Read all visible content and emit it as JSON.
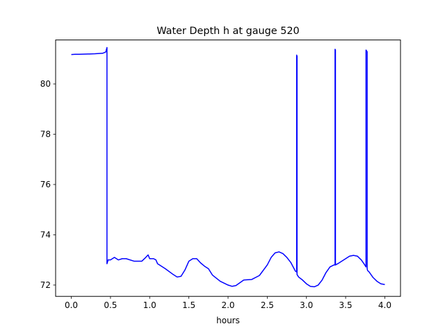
{
  "chart_data": {
    "type": "line",
    "title": "Water Depth h at gauge 520",
    "xlabel": "hours",
    "ylabel": "",
    "xlim": [
      -0.2,
      4.2
    ],
    "ylim": [
      71.55,
      81.75
    ],
    "xticks": [
      0.0,
      0.5,
      1.0,
      1.5,
      2.0,
      2.5,
      3.0,
      3.5,
      4.0
    ],
    "xtick_labels": [
      "0.0",
      "0.5",
      "1.0",
      "1.5",
      "2.0",
      "2.5",
      "3.0",
      "3.5",
      "4.0"
    ],
    "yticks": [
      72,
      74,
      76,
      78,
      80
    ],
    "ytick_labels": [
      "72",
      "74",
      "76",
      "78",
      "80"
    ],
    "grid": false,
    "legend": "none",
    "series": [
      {
        "color": "#0000ff",
        "x": [
          0.0,
          0.05,
          0.1,
          0.2,
          0.3,
          0.4,
          0.44,
          0.455,
          0.455,
          0.47,
          0.5,
          0.55,
          0.6,
          0.65,
          0.7,
          0.8,
          0.9,
          0.95,
          0.98,
          1.0,
          1.05,
          1.08,
          1.1,
          1.2,
          1.3,
          1.35,
          1.4,
          1.45,
          1.5,
          1.55,
          1.6,
          1.65,
          1.7,
          1.75,
          1.8,
          1.9,
          2.0,
          2.05,
          2.1,
          2.2,
          2.3,
          2.4,
          2.5,
          2.55,
          2.6,
          2.65,
          2.7,
          2.75,
          2.8,
          2.86,
          2.875,
          2.875,
          2.88,
          2.88,
          2.9,
          2.95,
          3.0,
          3.05,
          3.1,
          3.15,
          3.2,
          3.25,
          3.3,
          3.35,
          3.365,
          3.365,
          3.37,
          3.37,
          3.4,
          3.5,
          3.55,
          3.6,
          3.65,
          3.7,
          3.74,
          3.76,
          3.76,
          3.775,
          3.775,
          3.78,
          3.8,
          3.85,
          3.9,
          3.95,
          4.0
        ],
        "y": [
          81.17,
          81.18,
          81.18,
          81.19,
          81.2,
          81.22,
          81.27,
          81.45,
          72.85,
          73.0,
          73.0,
          73.1,
          73.0,
          73.05,
          73.05,
          72.95,
          72.95,
          73.1,
          73.2,
          73.05,
          73.05,
          73.0,
          72.85,
          72.65,
          72.42,
          72.32,
          72.35,
          72.6,
          72.95,
          73.05,
          73.05,
          72.88,
          72.75,
          72.65,
          72.4,
          72.15,
          72.0,
          71.95,
          71.98,
          72.2,
          72.22,
          72.38,
          72.8,
          73.1,
          73.28,
          73.32,
          73.25,
          73.1,
          72.9,
          72.55,
          72.52,
          81.15,
          81.1,
          72.42,
          72.32,
          72.2,
          72.05,
          71.95,
          71.93,
          72.0,
          72.2,
          72.5,
          72.72,
          72.8,
          72.8,
          81.38,
          81.35,
          72.8,
          72.85,
          73.05,
          73.15,
          73.18,
          73.15,
          73.0,
          72.82,
          72.72,
          81.35,
          81.28,
          72.65,
          72.58,
          72.52,
          72.3,
          72.15,
          72.05,
          72.02
        ]
      }
    ]
  }
}
